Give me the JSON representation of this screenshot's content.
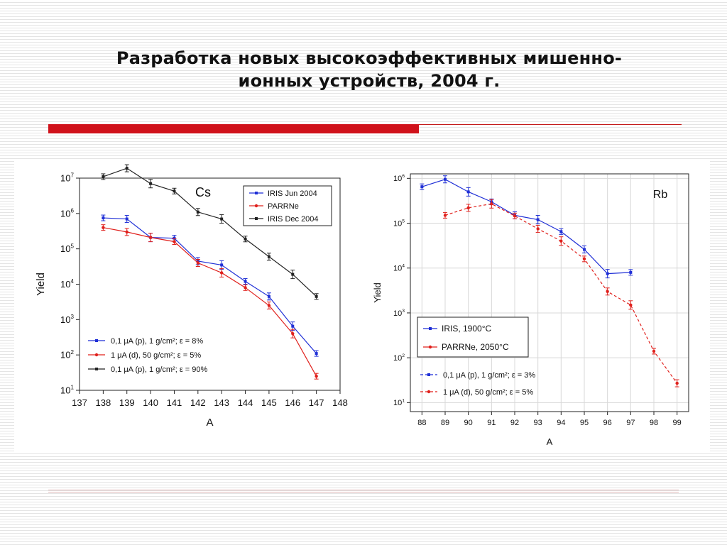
{
  "slide": {
    "title_line1": "Разработка новых высокоэффективных мишенно-",
    "title_line2": "ионных устройств,",
    "title_year": "2004 г.",
    "accent_color": "#d0121b"
  },
  "chart_data": [
    {
      "type": "line",
      "panel_label": "Cs",
      "xlabel": "A",
      "ylabel": "Yield",
      "xlim": [
        137,
        148
      ],
      "ylim_exponents": [
        1,
        7
      ],
      "y_log": true,
      "x_ticks": [
        137,
        138,
        139,
        140,
        141,
        142,
        143,
        144,
        145,
        146,
        147,
        148
      ],
      "y_ticks": [
        {
          "exp": 1,
          "base": "10",
          "sup": "1"
        },
        {
          "exp": 2,
          "base": "10",
          "sup": "2"
        },
        {
          "exp": 3,
          "base": "10",
          "sup": "3"
        },
        {
          "exp": 4,
          "base": "10",
          "sup": "4"
        },
        {
          "exp": 5,
          "base": "10",
          "sup": "5"
        },
        {
          "exp": 6,
          "base": "10",
          "sup": "6"
        },
        {
          "exp": 7,
          "base": "10",
          "sup": "7"
        }
      ],
      "legend_top": [
        "IRIS Jun 2004",
        "PARRNe",
        "IRIS Dec 2004"
      ],
      "legend_bottom": [
        "0,1 μA (p), 1 g/cm²; ε = 8%",
        "1 μA (d), 50 g/cm²; ε = 5%",
        "0,1 μA (p), 1 g/cm²; ε = 90%"
      ],
      "series": [
        {
          "name": "IRIS Jun 2004",
          "color": "#1f2fd6",
          "x": [
            138,
            139,
            140,
            141,
            142,
            143,
            144,
            145,
            146,
            147
          ],
          "y": [
            750000.0,
            700000.0,
            210000.0,
            200000.0,
            45000.0,
            35000.0,
            12000.0,
            4500.0,
            650.0,
            110.0
          ]
        },
        {
          "name": "PARRNe",
          "color": "#e0201c",
          "x": [
            138,
            139,
            140,
            141,
            142,
            143,
            144,
            145,
            146,
            147
          ],
          "y": [
            400000.0,
            300000.0,
            210000.0,
            160000.0,
            40000.0,
            21000.0,
            8000.0,
            2500.0,
            400.0,
            25.0
          ]
        },
        {
          "name": "IRIS Dec 2004",
          "color": "#222222",
          "x": [
            138,
            139,
            140,
            141,
            142,
            143,
            144,
            145,
            146,
            147
          ],
          "y": [
            11000000.0,
            19000000.0,
            7000000.0,
            4300000.0,
            1100000.0,
            700000.0,
            190000.0,
            60000.0,
            19000.0,
            4500.0
          ]
        }
      ]
    },
    {
      "type": "line",
      "panel_label": "Rb",
      "xlabel": "A",
      "ylabel": "Yield",
      "xlim": [
        87.5,
        99.5
      ],
      "ylim_exponents": [
        0.8,
        6.1
      ],
      "y_log": true,
      "x_ticks": [
        88,
        89,
        90,
        91,
        92,
        93,
        94,
        95,
        96,
        97,
        98,
        99
      ],
      "y_ticks": [
        {
          "exp": 1,
          "base": "10",
          "sup": "1"
        },
        {
          "exp": 2,
          "base": "10",
          "sup": "2"
        },
        {
          "exp": 3,
          "base": "10",
          "sup": "3"
        },
        {
          "exp": 4,
          "base": "10",
          "sup": "4"
        },
        {
          "exp": 5,
          "base": "10",
          "sup": "5"
        },
        {
          "exp": 6,
          "base": "10",
          "sup": "6"
        }
      ],
      "legend_top": [
        "IRIS, 1900°C",
        "PARRNe, 2050°C"
      ],
      "legend_bottom": [
        "0,1 μA (p), 1 g/cm²; ε = 3%",
        "1 μA (d), 50 g/cm²; ε = 5%"
      ],
      "series": [
        {
          "name": "IRIS, 1900°C",
          "color": "#1f2fd6",
          "x": [
            88,
            89,
            90,
            91,
            92,
            93,
            94,
            95,
            96,
            97
          ],
          "y": [
            650000.0,
            950000.0,
            500000.0,
            300000.0,
            150000.0,
            120000.0,
            65000.0,
            26000.0,
            7500.0,
            8000.0
          ]
        },
        {
          "name": "PARRNe, 2050°C",
          "color": "#e0201c",
          "x": [
            89,
            90,
            91,
            92,
            93,
            94,
            95,
            96,
            97,
            98,
            99
          ],
          "y": [
            150000.0,
            220000.0,
            270000.0,
            145000.0,
            75000.0,
            40000.0,
            16000.0,
            3000.0,
            1500.0,
            140.0,
            27.0
          ]
        }
      ]
    }
  ]
}
